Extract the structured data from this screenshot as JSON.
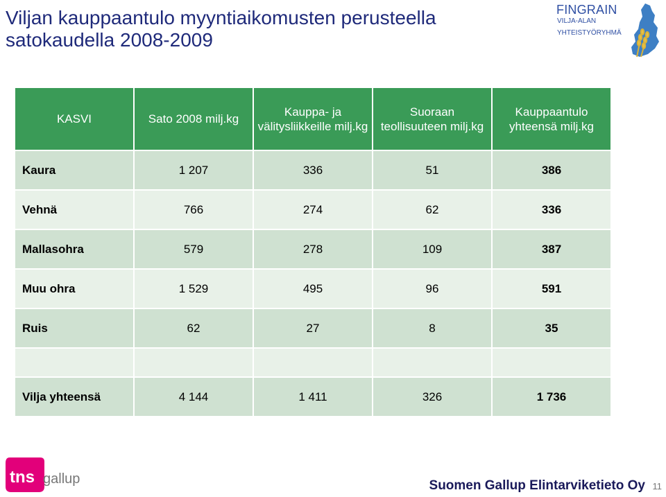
{
  "title": {
    "line1": "Viljan kauppaantulo myyntiaikomusten perusteella",
    "line2": "satokaudella 2008-2009"
  },
  "logo": {
    "name": "FINGRAIN",
    "sub1": "VILJA-ALAN",
    "sub2": "YHTEISTYÖRYHMÄ",
    "icon": "finland-map-wheat-icon"
  },
  "table": {
    "headers": [
      "KASVI",
      "Sato 2008 milj.kg",
      "Kauppa- ja välitysliikkeille milj.kg",
      "Suoraan teollisuuteen milj.kg",
      "Kauppaantulo yhteensä milj.kg"
    ],
    "rows": [
      {
        "crop": "Kaura",
        "harvest": "1 207",
        "trade": "336",
        "industry": "51",
        "total": "386"
      },
      {
        "crop": "Vehnä",
        "harvest": "766",
        "trade": "274",
        "industry": "62",
        "total": "336"
      },
      {
        "crop": "Mallasohra",
        "harvest": "579",
        "trade": "278",
        "industry": "109",
        "total": "387"
      },
      {
        "crop": "Muu ohra",
        "harvest": "1 529",
        "trade": "495",
        "industry": "96",
        "total": "591"
      },
      {
        "crop": "Ruis",
        "harvest": "62",
        "trade": "27",
        "industry": "8",
        "total": "35"
      }
    ],
    "grand_total": {
      "crop": "Vilja yhteensä",
      "harvest": "4 144",
      "trade": "1 411",
      "industry": "326",
      "total": "1 736"
    }
  },
  "brand": {
    "logo_text": "tns",
    "gallup": "gallup",
    "accent": "#e2007a"
  },
  "footer": {
    "company": "Suomen Gallup Elintarviketieto Oy",
    "page": "11"
  }
}
